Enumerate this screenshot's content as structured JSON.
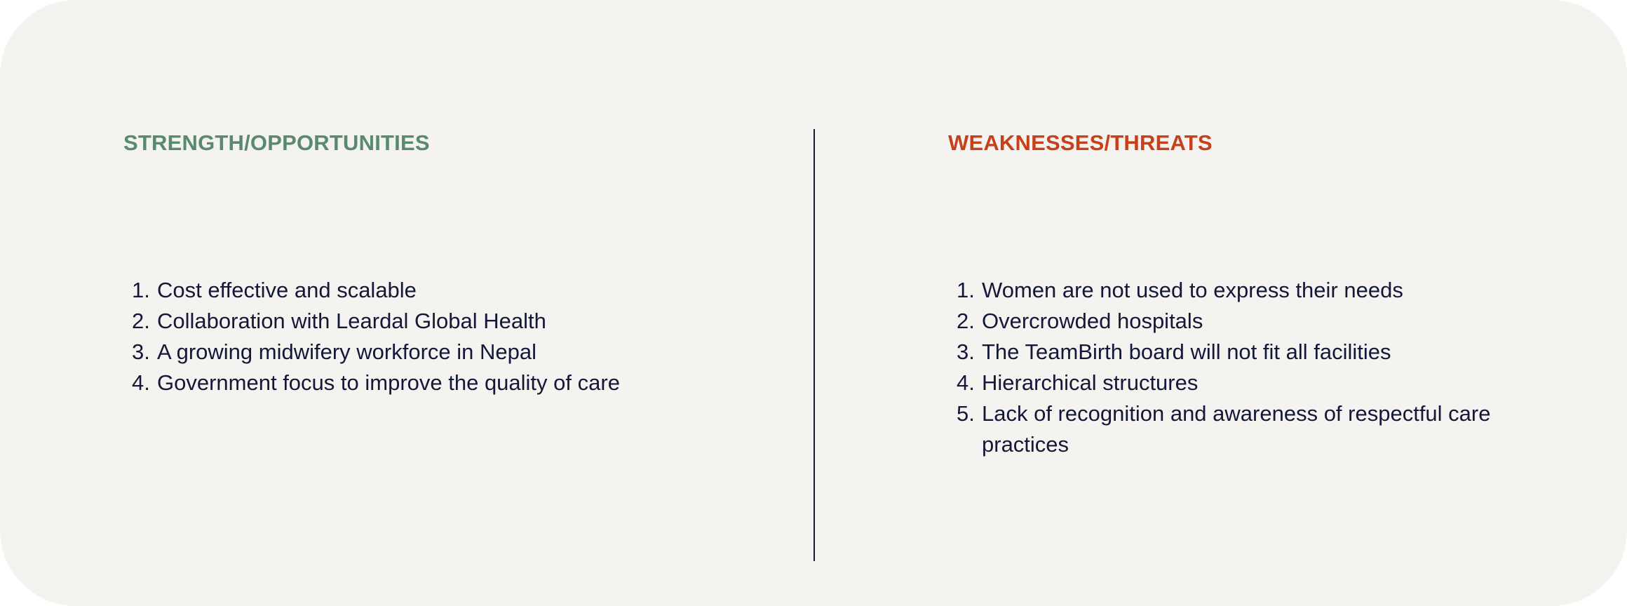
{
  "strengths": {
    "title": "STRENGTH/OPPORTUNITIES",
    "items": [
      {
        "num": "1.",
        "text": "Cost effective and scalable"
      },
      {
        "num": "2.",
        "text": "Collaboration with Leardal Global Health"
      },
      {
        "num": "3.",
        "text": "A growing midwifery workforce in Nepal"
      },
      {
        "num": "4.",
        "text": "Government focus to improve the quality of care"
      }
    ]
  },
  "weaknesses": {
    "title": "WEAKNESSES/THREATS",
    "items": [
      {
        "num": "1.",
        "text": "Women are not used to express their needs"
      },
      {
        "num": "2.",
        "text": "Overcrowded hospitals"
      },
      {
        "num": "3.",
        "text": "The TeamBirth board will not fit all facilities"
      },
      {
        "num": "4.",
        "text": "Hierarchical structures"
      },
      {
        "num": "5.",
        "text": "Lack of recognition and awareness of respectful care practices"
      }
    ]
  },
  "colors": {
    "background": "#f4f3f0",
    "strength_heading": "#5a8a6e",
    "weakness_heading": "#c8401a",
    "body_text": "#141838",
    "divider": "#141830"
  }
}
